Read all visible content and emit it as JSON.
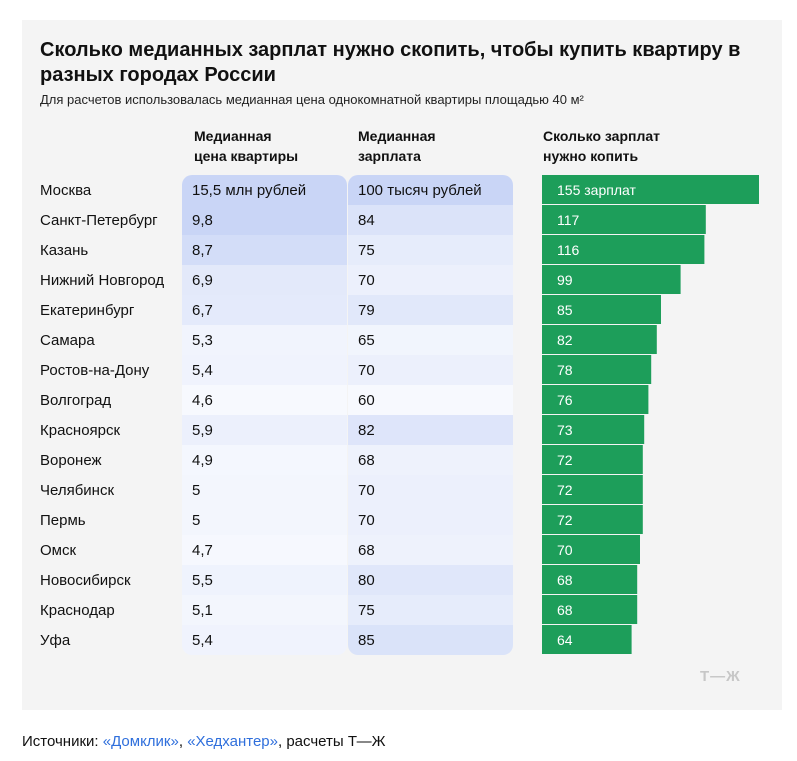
{
  "title": "Сколько медианных зарплат нужно скопить, чтобы купить квартиру в разных городах России",
  "subtitle": "Для расчетов использовалась медианная цена однокомнатной квартиры площадью 40 м²",
  "headers": {
    "price": [
      "Медианная",
      "цена квартиры"
    ],
    "salary": [
      "Медианная",
      "зарплата"
    ],
    "count": [
      "Сколько зарплат",
      "нужно копить"
    ]
  },
  "logo": "Т—Ж",
  "sources": {
    "prefix": "Источники: ",
    "link1": "«Домклик»",
    "sep": ", ",
    "link2": "«Хедхантер»",
    "suffix": ", расчеты Т—Ж"
  },
  "colors": {
    "bar": "#1d9e5a",
    "panel_base": "#e8eefb",
    "panel_strong": "#c9d5f6",
    "panel_light": "#f7f9fe",
    "bar_label": "#ffffff"
  },
  "chart_data": {
    "type": "bar",
    "orientation": "horizontal",
    "categories": [
      "Москва",
      "Санкт-Петербург",
      "Казань",
      "Нижний Новгород",
      "Екатеринбург",
      "Самара",
      "Ростов-на-Дону",
      "Волгоград",
      "Красноярск",
      "Воронеж",
      "Челябинск",
      "Пермь",
      "Омск",
      "Новосибирск",
      "Краснодар",
      "Уфа"
    ],
    "price_labels": [
      "15,5 млн рублей",
      "9,8",
      "8,7",
      "6,9",
      "6,7",
      "5,3",
      "5,4",
      "4,6",
      "5,9",
      "4,9",
      "5",
      "5",
      "4,7",
      "5,5",
      "5,1",
      "5,4"
    ],
    "price_values": [
      15.5,
      9.8,
      8.7,
      6.9,
      6.7,
      5.3,
      5.4,
      4.6,
      5.9,
      4.9,
      5,
      5,
      4.7,
      5.5,
      5.1,
      5.4
    ],
    "salary_labels": [
      "100 тысяч рублей",
      "84",
      "75",
      "70",
      "79",
      "65",
      "70",
      "60",
      "82",
      "68",
      "70",
      "70",
      "68",
      "80",
      "75",
      "85"
    ],
    "salary_values": [
      100,
      84,
      75,
      70,
      79,
      65,
      70,
      60,
      82,
      68,
      70,
      70,
      68,
      80,
      75,
      85
    ],
    "count_labels": [
      "155 зарплат",
      "117",
      "116",
      "99",
      "85",
      "82",
      "78",
      "76",
      "73",
      "72",
      "72",
      "72",
      "70",
      "68",
      "68",
      "64"
    ],
    "values": [
      155,
      117,
      116,
      99,
      85,
      82,
      78,
      76,
      73,
      72,
      72,
      72,
      70,
      68,
      68,
      64
    ]
  }
}
